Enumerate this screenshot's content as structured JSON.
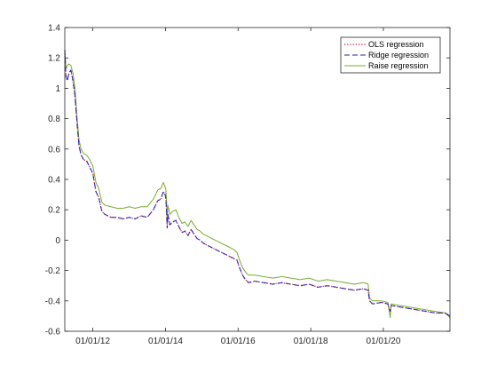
{
  "chart_data": {
    "type": "line",
    "title": "",
    "xlabel": "",
    "ylabel": "",
    "xlim": [
      "2011-03-25",
      "2021-11-01"
    ],
    "ylim": [
      -0.6,
      1.4
    ],
    "grid": false,
    "legend_position": "top-right",
    "x_ticks": [
      {
        "date": "2012-01-01",
        "label": "01/01/12"
      },
      {
        "date": "2014-01-01",
        "label": "01/01/14"
      },
      {
        "date": "2016-01-01",
        "label": "01/01/16"
      },
      {
        "date": "2018-01-01",
        "label": "01/01/18"
      },
      {
        "date": "2020-01-01",
        "label": "01/01/20"
      }
    ],
    "y_ticks": [
      -0.6,
      -0.4,
      -0.2,
      0,
      0.2,
      0.4,
      0.6,
      0.8,
      1,
      1.2,
      1.4
    ],
    "series": [
      {
        "name": "OLS regression",
        "color": "#d9363e",
        "dash": "dotted",
        "points": [
          [
            "2011-03-25",
            1.25
          ],
          [
            "2011-04-05",
            1.08
          ],
          [
            "2011-04-20",
            1.05
          ],
          [
            "2011-05-05",
            1.1
          ],
          [
            "2011-05-25",
            1.12
          ],
          [
            "2011-06-15",
            1.05
          ],
          [
            "2011-07-05",
            0.95
          ],
          [
            "2011-07-25",
            0.78
          ],
          [
            "2011-08-15",
            0.62
          ],
          [
            "2011-09-05",
            0.56
          ],
          [
            "2011-10-01",
            0.53
          ],
          [
            "2011-11-01",
            0.52
          ],
          [
            "2011-12-01",
            0.48
          ],
          [
            "2012-01-01",
            0.44
          ],
          [
            "2012-02-01",
            0.32
          ],
          [
            "2012-03-01",
            0.28
          ],
          [
            "2012-04-01",
            0.19
          ],
          [
            "2012-05-01",
            0.17
          ],
          [
            "2012-07-01",
            0.15
          ],
          [
            "2012-09-01",
            0.15
          ],
          [
            "2012-11-01",
            0.14
          ],
          [
            "2013-01-01",
            0.15
          ],
          [
            "2013-03-01",
            0.14
          ],
          [
            "2013-05-01",
            0.16
          ],
          [
            "2013-07-01",
            0.15
          ],
          [
            "2013-09-01",
            0.2
          ],
          [
            "2013-10-15",
            0.26
          ],
          [
            "2013-11-15",
            0.27
          ],
          [
            "2013-12-10",
            0.32
          ],
          [
            "2013-12-28",
            0.3
          ],
          [
            "2014-01-05",
            0.27
          ],
          [
            "2014-01-12",
            0.18
          ],
          [
            "2014-01-18",
            0.08
          ],
          [
            "2014-01-25",
            0.17
          ],
          [
            "2014-02-15",
            0.1
          ],
          [
            "2014-03-15",
            0.12
          ],
          [
            "2014-04-15",
            0.13
          ],
          [
            "2014-05-15",
            0.09
          ],
          [
            "2014-06-15",
            0.05
          ],
          [
            "2014-07-15",
            0.06
          ],
          [
            "2014-08-15",
            0.03
          ],
          [
            "2014-09-15",
            0.07
          ],
          [
            "2014-10-15",
            0.04
          ],
          [
            "2014-11-15",
            0.01
          ],
          [
            "2014-12-15",
            0.0
          ],
          [
            "2015-01-15",
            -0.02
          ],
          [
            "2015-03-15",
            -0.04
          ],
          [
            "2015-05-15",
            -0.06
          ],
          [
            "2015-07-15",
            -0.08
          ],
          [
            "2015-09-15",
            -0.1
          ],
          [
            "2015-11-15",
            -0.12
          ],
          [
            "2015-12-20",
            -0.13
          ],
          [
            "2016-01-15",
            -0.18
          ],
          [
            "2016-02-15",
            -0.23
          ],
          [
            "2016-03-15",
            -0.26
          ],
          [
            "2016-04-15",
            -0.28
          ],
          [
            "2016-06-15",
            -0.27
          ],
          [
            "2016-09-15",
            -0.28
          ],
          [
            "2016-12-15",
            -0.29
          ],
          [
            "2017-03-15",
            -0.28
          ],
          [
            "2017-06-15",
            -0.29
          ],
          [
            "2017-09-15",
            -0.3
          ],
          [
            "2017-12-15",
            -0.29
          ],
          [
            "2018-03-15",
            -0.31
          ],
          [
            "2018-06-15",
            -0.3
          ],
          [
            "2018-09-15",
            -0.31
          ],
          [
            "2018-12-15",
            -0.32
          ],
          [
            "2019-03-15",
            -0.33
          ],
          [
            "2019-06-15",
            -0.32
          ],
          [
            "2019-08-01",
            -0.33
          ],
          [
            "2019-08-15",
            -0.4
          ],
          [
            "2019-09-15",
            -0.42
          ],
          [
            "2019-12-15",
            -0.41
          ],
          [
            "2020-02-15",
            -0.42
          ],
          [
            "2020-03-10",
            -0.47
          ],
          [
            "2020-03-20",
            -0.43
          ],
          [
            "2020-06-15",
            -0.44
          ],
          [
            "2020-09-15",
            -0.45
          ],
          [
            "2020-12-15",
            -0.46
          ],
          [
            "2021-03-15",
            -0.47
          ],
          [
            "2021-06-15",
            -0.48
          ],
          [
            "2021-09-15",
            -0.48
          ],
          [
            "2021-11-01",
            -0.5
          ]
        ]
      },
      {
        "name": "Ridge regression",
        "color": "#2424b8",
        "dash": "dashed",
        "points": [
          [
            "2011-03-25",
            1.25
          ],
          [
            "2011-04-05",
            1.08
          ],
          [
            "2011-04-20",
            1.05
          ],
          [
            "2011-05-05",
            1.1
          ],
          [
            "2011-05-25",
            1.12
          ],
          [
            "2011-06-15",
            1.05
          ],
          [
            "2011-07-05",
            0.95
          ],
          [
            "2011-07-25",
            0.78
          ],
          [
            "2011-08-15",
            0.62
          ],
          [
            "2011-09-05",
            0.56
          ],
          [
            "2011-10-01",
            0.53
          ],
          [
            "2011-11-01",
            0.52
          ],
          [
            "2011-12-01",
            0.48
          ],
          [
            "2012-01-01",
            0.44
          ],
          [
            "2012-02-01",
            0.32
          ],
          [
            "2012-03-01",
            0.28
          ],
          [
            "2012-04-01",
            0.19
          ],
          [
            "2012-05-01",
            0.17
          ],
          [
            "2012-07-01",
            0.15
          ],
          [
            "2012-09-01",
            0.15
          ],
          [
            "2012-11-01",
            0.14
          ],
          [
            "2013-01-01",
            0.15
          ],
          [
            "2013-03-01",
            0.14
          ],
          [
            "2013-05-01",
            0.16
          ],
          [
            "2013-07-01",
            0.15
          ],
          [
            "2013-09-01",
            0.2
          ],
          [
            "2013-10-15",
            0.26
          ],
          [
            "2013-11-15",
            0.27
          ],
          [
            "2013-12-10",
            0.32
          ],
          [
            "2013-12-28",
            0.3
          ],
          [
            "2014-01-05",
            0.27
          ],
          [
            "2014-01-12",
            0.18
          ],
          [
            "2014-01-18",
            0.08
          ],
          [
            "2014-01-25",
            0.17
          ],
          [
            "2014-02-15",
            0.1
          ],
          [
            "2014-03-15",
            0.12
          ],
          [
            "2014-04-15",
            0.13
          ],
          [
            "2014-05-15",
            0.09
          ],
          [
            "2014-06-15",
            0.05
          ],
          [
            "2014-07-15",
            0.06
          ],
          [
            "2014-08-15",
            0.03
          ],
          [
            "2014-09-15",
            0.07
          ],
          [
            "2014-10-15",
            0.04
          ],
          [
            "2014-11-15",
            0.01
          ],
          [
            "2014-12-15",
            0.0
          ],
          [
            "2015-01-15",
            -0.02
          ],
          [
            "2015-03-15",
            -0.04
          ],
          [
            "2015-05-15",
            -0.06
          ],
          [
            "2015-07-15",
            -0.08
          ],
          [
            "2015-09-15",
            -0.1
          ],
          [
            "2015-11-15",
            -0.12
          ],
          [
            "2015-12-20",
            -0.13
          ],
          [
            "2016-01-15",
            -0.18
          ],
          [
            "2016-02-15",
            -0.23
          ],
          [
            "2016-03-15",
            -0.26
          ],
          [
            "2016-04-15",
            -0.28
          ],
          [
            "2016-06-15",
            -0.27
          ],
          [
            "2016-09-15",
            -0.28
          ],
          [
            "2016-12-15",
            -0.29
          ],
          [
            "2017-03-15",
            -0.28
          ],
          [
            "2017-06-15",
            -0.29
          ],
          [
            "2017-09-15",
            -0.3
          ],
          [
            "2017-12-15",
            -0.29
          ],
          [
            "2018-03-15",
            -0.31
          ],
          [
            "2018-06-15",
            -0.3
          ],
          [
            "2018-09-15",
            -0.31
          ],
          [
            "2018-12-15",
            -0.32
          ],
          [
            "2019-03-15",
            -0.33
          ],
          [
            "2019-06-15",
            -0.32
          ],
          [
            "2019-08-01",
            -0.33
          ],
          [
            "2019-08-15",
            -0.4
          ],
          [
            "2019-09-15",
            -0.42
          ],
          [
            "2019-12-15",
            -0.41
          ],
          [
            "2020-02-15",
            -0.42
          ],
          [
            "2020-03-10",
            -0.47
          ],
          [
            "2020-03-20",
            -0.43
          ],
          [
            "2020-06-15",
            -0.44
          ],
          [
            "2020-09-15",
            -0.45
          ],
          [
            "2020-12-15",
            -0.46
          ],
          [
            "2021-03-15",
            -0.47
          ],
          [
            "2021-06-15",
            -0.48
          ],
          [
            "2021-09-15",
            -0.48
          ],
          [
            "2021-11-01",
            -0.5
          ]
        ]
      },
      {
        "name": "Raise regression",
        "color": "#77ac30",
        "dash": "solid",
        "points": [
          [
            "2011-03-25",
            1.25
          ],
          [
            "2011-04-05",
            1.13
          ],
          [
            "2011-04-20",
            1.15
          ],
          [
            "2011-05-05",
            1.16
          ],
          [
            "2011-05-25",
            1.15
          ],
          [
            "2011-06-15",
            1.1
          ],
          [
            "2011-07-05",
            1.0
          ],
          [
            "2011-07-25",
            0.82
          ],
          [
            "2011-08-15",
            0.66
          ],
          [
            "2011-09-05",
            0.6
          ],
          [
            "2011-10-01",
            0.57
          ],
          [
            "2011-11-01",
            0.56
          ],
          [
            "2011-12-01",
            0.53
          ],
          [
            "2012-01-01",
            0.49
          ],
          [
            "2012-02-01",
            0.38
          ],
          [
            "2012-03-01",
            0.34
          ],
          [
            "2012-04-01",
            0.25
          ],
          [
            "2012-05-01",
            0.23
          ],
          [
            "2012-07-01",
            0.22
          ],
          [
            "2012-09-01",
            0.21
          ],
          [
            "2012-11-01",
            0.21
          ],
          [
            "2013-01-01",
            0.22
          ],
          [
            "2013-03-01",
            0.21
          ],
          [
            "2013-05-01",
            0.22
          ],
          [
            "2013-07-01",
            0.22
          ],
          [
            "2013-09-01",
            0.27
          ],
          [
            "2013-10-15",
            0.33
          ],
          [
            "2013-11-15",
            0.34
          ],
          [
            "2013-12-10",
            0.38
          ],
          [
            "2013-12-28",
            0.35
          ],
          [
            "2014-01-05",
            0.33
          ],
          [
            "2014-01-12",
            0.25
          ],
          [
            "2014-01-18",
            0.14
          ],
          [
            "2014-01-25",
            0.23
          ],
          [
            "2014-02-15",
            0.17
          ],
          [
            "2014-03-15",
            0.19
          ],
          [
            "2014-04-15",
            0.2
          ],
          [
            "2014-05-15",
            0.15
          ],
          [
            "2014-06-15",
            0.11
          ],
          [
            "2014-07-15",
            0.12
          ],
          [
            "2014-08-15",
            0.09
          ],
          [
            "2014-09-15",
            0.13
          ],
          [
            "2014-10-15",
            0.1
          ],
          [
            "2014-11-15",
            0.07
          ],
          [
            "2014-12-15",
            0.06
          ],
          [
            "2015-01-15",
            0.04
          ],
          [
            "2015-03-15",
            0.02
          ],
          [
            "2015-05-15",
            0.0
          ],
          [
            "2015-07-15",
            -0.02
          ],
          [
            "2015-09-15",
            -0.04
          ],
          [
            "2015-11-15",
            -0.06
          ],
          [
            "2015-12-20",
            -0.08
          ],
          [
            "2016-01-15",
            -0.13
          ],
          [
            "2016-02-15",
            -0.18
          ],
          [
            "2016-03-15",
            -0.21
          ],
          [
            "2016-04-15",
            -0.23
          ],
          [
            "2016-06-15",
            -0.23
          ],
          [
            "2016-09-15",
            -0.24
          ],
          [
            "2016-12-15",
            -0.25
          ],
          [
            "2017-03-15",
            -0.24
          ],
          [
            "2017-06-15",
            -0.25
          ],
          [
            "2017-09-15",
            -0.26
          ],
          [
            "2017-12-15",
            -0.25
          ],
          [
            "2018-03-15",
            -0.27
          ],
          [
            "2018-06-15",
            -0.26
          ],
          [
            "2018-09-15",
            -0.27
          ],
          [
            "2018-12-15",
            -0.28
          ],
          [
            "2019-03-15",
            -0.29
          ],
          [
            "2019-06-15",
            -0.28
          ],
          [
            "2019-08-01",
            -0.29
          ],
          [
            "2019-08-15",
            -0.38
          ],
          [
            "2019-09-15",
            -0.4
          ],
          [
            "2019-12-15",
            -0.4
          ],
          [
            "2020-02-15",
            -0.41
          ],
          [
            "2020-03-10",
            -0.51
          ],
          [
            "2020-03-20",
            -0.42
          ],
          [
            "2020-06-15",
            -0.43
          ],
          [
            "2020-09-15",
            -0.44
          ],
          [
            "2020-12-15",
            -0.45
          ],
          [
            "2021-03-15",
            -0.46
          ],
          [
            "2021-06-15",
            -0.47
          ],
          [
            "2021-09-15",
            -0.48
          ],
          [
            "2021-11-01",
            -0.51
          ]
        ]
      }
    ]
  }
}
